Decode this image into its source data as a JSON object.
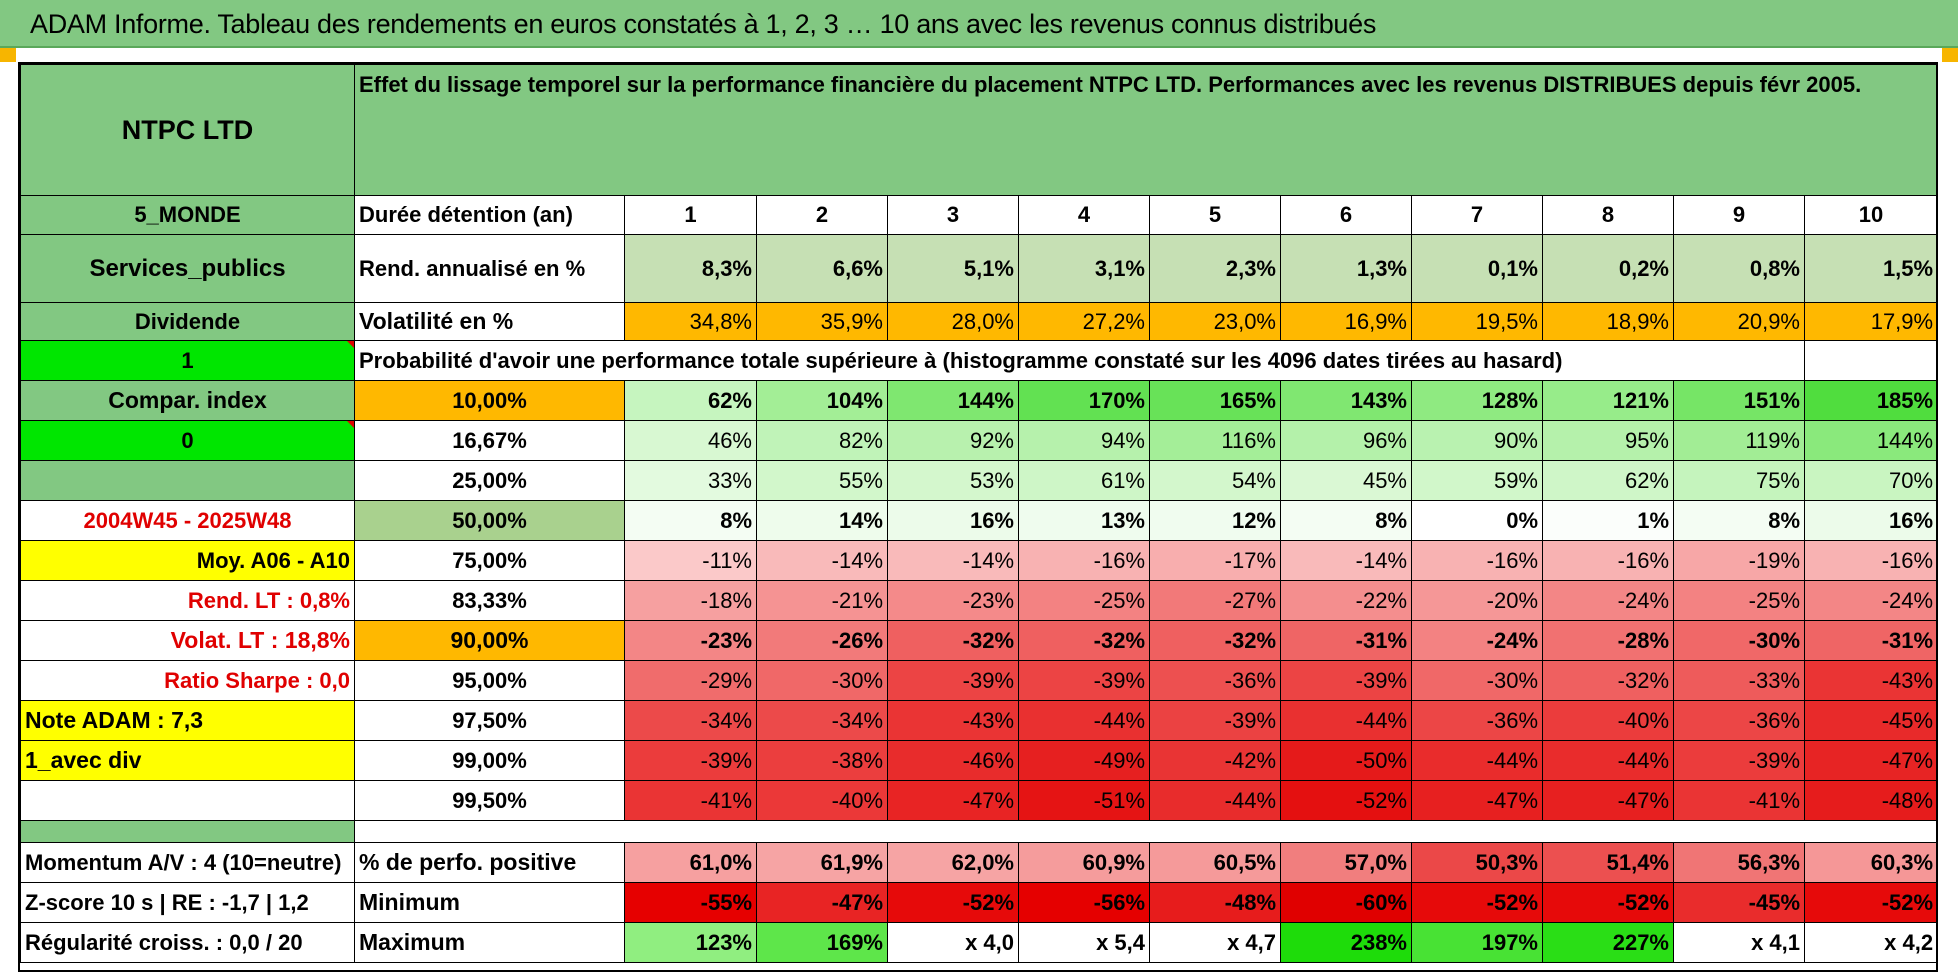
{
  "title": "ADAM Informe. Tableau des rendements en euros constatés à 1, 2, 3 … 10 ans avec les revenus connus distribués",
  "left_labels": {
    "name": "NTPC LTD",
    "region": "5_MONDE",
    "sector": "Services_publics",
    "type": "Dividende",
    "flag1": "1",
    "compar": "Compar. index",
    "flag0": "0",
    "period": "2004W45 - 2025W48",
    "moy": "Moy. A06 - A10",
    "rend_lt": "Rend. LT :    0,8%",
    "volat_lt": "Volat. LT :    18,8%",
    "sharpe": "Ratio Sharpe :    0,0",
    "note": "Note ADAM : 7,3",
    "div": "1_avec div",
    "momentum": "Momentum A/V : 4 (10=neutre)",
    "zscore": "Z-score 10 s | RE : -1,7 | 1,2",
    "regularite": "Régularité croiss. : 0,0 / 20"
  },
  "description": "Effet du lissage temporel sur la performance financière du placement NTPC LTD. Performances avec les revenus DISTRIBUES depuis févr 2005.",
  "row_labels": {
    "duration": "Durée détention (an)",
    "rendement": "Rend. annualisé en %",
    "volatilite": "Volatilité en %",
    "probability": "Probabilité d'avoir une performance totale supérieure à (histogramme constaté sur les 4096 dates tirées au hasard)",
    "positive": "% de perfo. positive",
    "minimum": "Minimum",
    "maximum": "Maximum"
  },
  "durations": [
    "1",
    "2",
    "3",
    "4",
    "5",
    "6",
    "7",
    "8",
    "9",
    "10"
  ],
  "rendement": [
    "8,3%",
    "6,6%",
    "5,1%",
    "3,1%",
    "2,3%",
    "1,3%",
    "0,1%",
    "0,2%",
    "0,8%",
    "1,5%"
  ],
  "volatilite": [
    "34,8%",
    "35,9%",
    "28,0%",
    "27,2%",
    "23,0%",
    "16,9%",
    "19,5%",
    "18,9%",
    "20,9%",
    "17,9%"
  ],
  "percentiles": [
    {
      "p": "10,00%",
      "values": [
        "62%",
        "104%",
        "144%",
        "170%",
        "165%",
        "143%",
        "128%",
        "121%",
        "151%",
        "185%"
      ]
    },
    {
      "p": "16,67%",
      "values": [
        "46%",
        "82%",
        "92%",
        "94%",
        "116%",
        "96%",
        "90%",
        "95%",
        "119%",
        "144%"
      ]
    },
    {
      "p": "25,00%",
      "values": [
        "33%",
        "55%",
        "53%",
        "61%",
        "54%",
        "45%",
        "59%",
        "62%",
        "75%",
        "70%"
      ]
    },
    {
      "p": "50,00%",
      "values": [
        "8%",
        "14%",
        "16%",
        "13%",
        "12%",
        "8%",
        "0%",
        "1%",
        "8%",
        "16%"
      ]
    },
    {
      "p": "75,00%",
      "values": [
        "-11%",
        "-14%",
        "-14%",
        "-16%",
        "-17%",
        "-14%",
        "-16%",
        "-16%",
        "-19%",
        "-16%"
      ]
    },
    {
      "p": "83,33%",
      "values": [
        "-18%",
        "-21%",
        "-23%",
        "-25%",
        "-27%",
        "-22%",
        "-20%",
        "-24%",
        "-25%",
        "-24%"
      ]
    },
    {
      "p": "90,00%",
      "values": [
        "-23%",
        "-26%",
        "-32%",
        "-32%",
        "-32%",
        "-31%",
        "-24%",
        "-28%",
        "-30%",
        "-31%"
      ]
    },
    {
      "p": "95,00%",
      "values": [
        "-29%",
        "-30%",
        "-39%",
        "-39%",
        "-36%",
        "-39%",
        "-30%",
        "-32%",
        "-33%",
        "-43%"
      ]
    },
    {
      "p": "97,50%",
      "values": [
        "-34%",
        "-34%",
        "-43%",
        "-44%",
        "-39%",
        "-44%",
        "-36%",
        "-40%",
        "-36%",
        "-45%"
      ]
    },
    {
      "p": "99,00%",
      "values": [
        "-39%",
        "-38%",
        "-46%",
        "-49%",
        "-42%",
        "-50%",
        "-44%",
        "-44%",
        "-39%",
        "-47%"
      ]
    },
    {
      "p": "99,50%",
      "values": [
        "-41%",
        "-40%",
        "-47%",
        "-51%",
        "-44%",
        "-52%",
        "-47%",
        "-47%",
        "-41%",
        "-48%"
      ]
    }
  ],
  "positive": [
    "61,0%",
    "61,9%",
    "62,0%",
    "60,9%",
    "60,5%",
    "57,0%",
    "50,3%",
    "51,4%",
    "56,3%",
    "60,3%"
  ],
  "minimum": [
    "-55%",
    "-47%",
    "-52%",
    "-56%",
    "-48%",
    "-60%",
    "-52%",
    "-52%",
    "-45%",
    "-52%"
  ],
  "maximum": [
    "123%",
    "169%",
    "x 4,0",
    "x 5,4",
    "x 4,7",
    "238%",
    "197%",
    "227%",
    "x 4,1",
    "x 4,2"
  ],
  "colors": {
    "header_green": "#82c882",
    "bright_green": "#00e600",
    "orange": "#ffb800",
    "yellow": "#ffff00",
    "label_red": "#e00000"
  }
}
